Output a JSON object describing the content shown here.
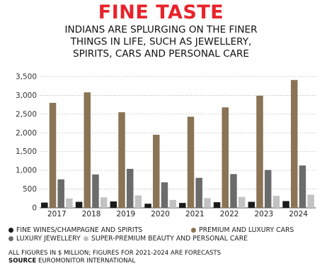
{
  "header": {
    "title": "FINE TASTE",
    "subtitle_lines": [
      "INDIANS ARE SPLURGING ON THE FINER",
      "THINGS IN LIFE, SUCH AS JEWELLERY,",
      "SPIRITS, CARS AND PERSONAL CARE"
    ]
  },
  "chart_data": {
    "type": "bar",
    "categories": [
      "2017",
      "2018",
      "2019",
      "2020",
      "2021",
      "2022",
      "2023",
      "2024"
    ],
    "series": [
      {
        "name": "FINE WINES/CHAMPAGNE AND SPIRITS",
        "color": "#1a1a1a",
        "values": [
          140,
          160,
          170,
          110,
          130,
          150,
          160,
          180
        ]
      },
      {
        "name": "PREMIUM AND LUXURY CARS",
        "color": "#8b7355",
        "values": [
          2800,
          3080,
          2550,
          1950,
          2430,
          2680,
          2990,
          3410
        ]
      },
      {
        "name": "LUXURY JEWELLERY",
        "color": "#6b6b6b",
        "values": [
          760,
          890,
          1040,
          680,
          800,
          900,
          1010,
          1130
        ]
      },
      {
        "name": "SUPER-PREMIUM BEAUTY AND PERSONAL CARE",
        "color": "#c2c2c2",
        "values": [
          250,
          280,
          330,
          210,
          260,
          290,
          320,
          350
        ]
      }
    ],
    "ylim": [
      0,
      3500
    ],
    "yticks": [
      "0",
      "500",
      "1,000",
      "1,500",
      "2,000",
      "2,500",
      "3,000",
      "3,500"
    ],
    "grid": "horizontal dotted",
    "legend_position": "bottom"
  },
  "footer": {
    "note": "ALL FIGURES IN $ MILLION; FIGURES FOR 2021-2024 ARE FORECASTS",
    "source_label": "SOURCE",
    "source_text": "EUROMONITOR INTERNATIONAL"
  }
}
